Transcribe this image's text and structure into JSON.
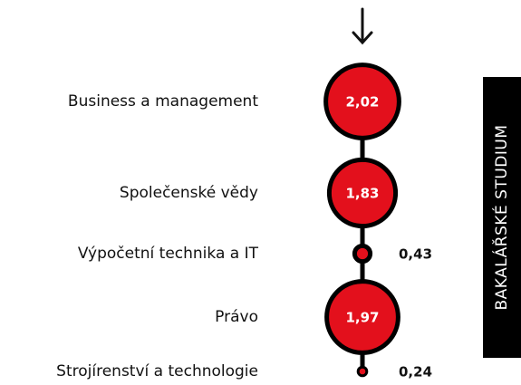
{
  "chart_data": {
    "type": "bubble",
    "side_label": "BAKALÁŘSKÉ STUDIUM",
    "categories": [
      "Business a management",
      "Společenské vědy",
      "Výpočetní technika a IT",
      "Právo",
      "Strojírenství a technologie"
    ],
    "values": [
      2.02,
      1.83,
      0.43,
      1.97,
      0.24
    ],
    "value_labels": [
      "2,02",
      "1,83",
      "0,43",
      "1,97",
      "0,24"
    ],
    "color": "#e3101c"
  }
}
